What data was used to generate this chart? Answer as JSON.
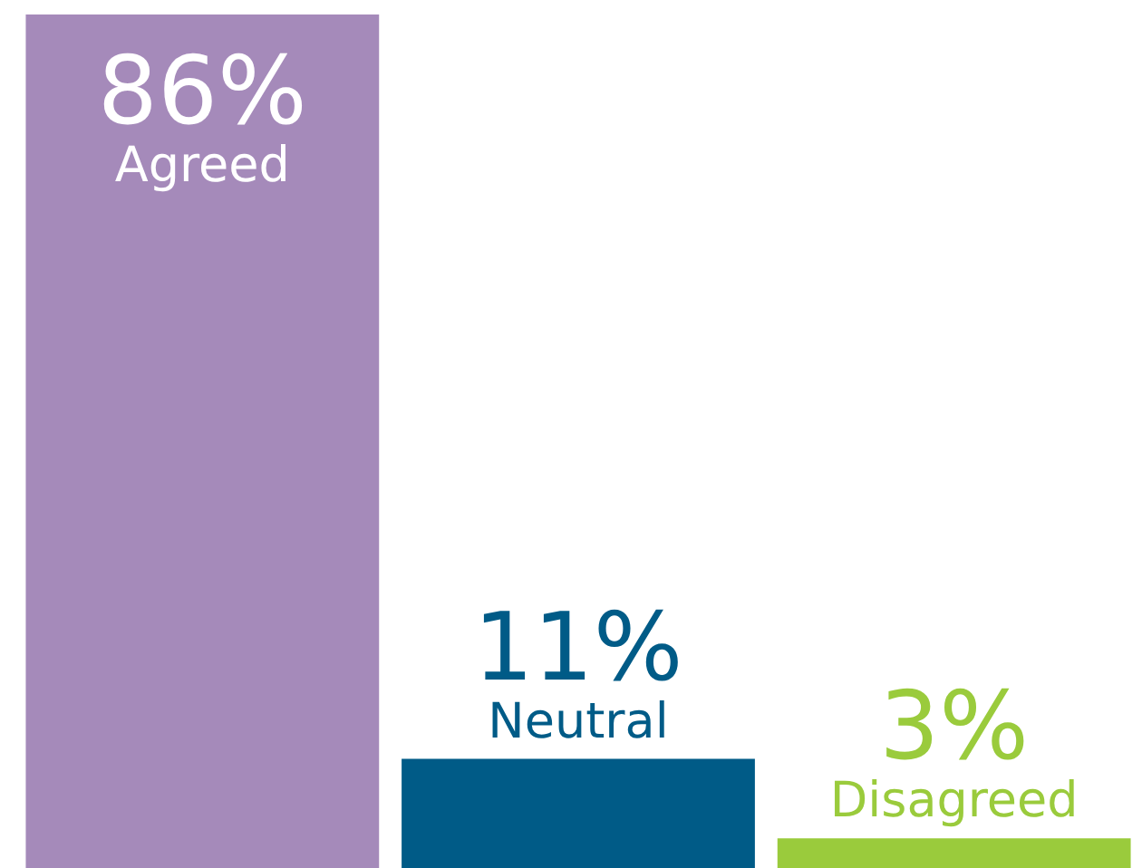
{
  "chart_data": {
    "type": "bar",
    "categories": [
      "Agreed",
      "Neutral",
      "Disagreed"
    ],
    "values": [
      86,
      11,
      3
    ],
    "value_labels": [
      "86%",
      "11%",
      "3%"
    ],
    "colors": [
      "#a58aba",
      "#005b87",
      "#9acb3c"
    ]
  }
}
